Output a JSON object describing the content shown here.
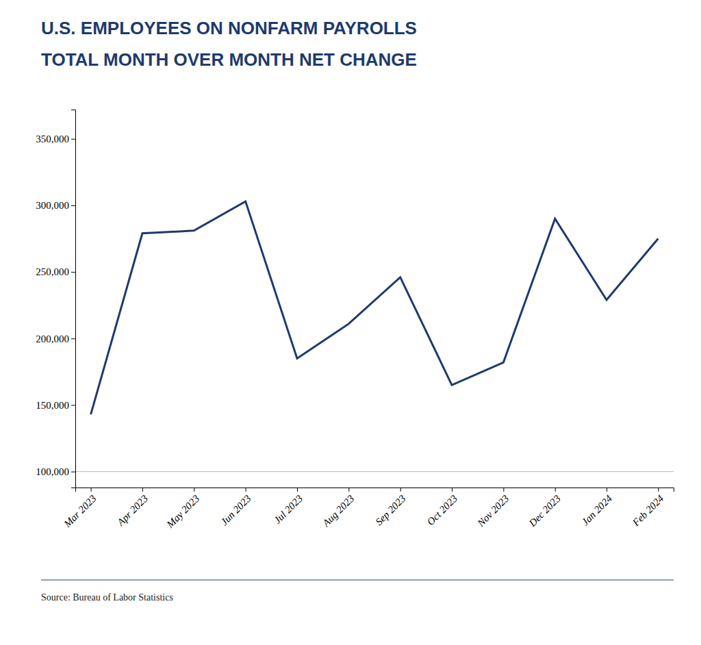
{
  "chart_data": {
    "type": "line",
    "title": "U.S. EMPLOYEES ON NONFARM PAYROLLS",
    "subtitle": "TOTAL MONTH OVER MONTH NET CHANGE",
    "source": "Source: Bureau of Labor Statistics",
    "categories": [
      "Mar 2023",
      "Apr 2023",
      "May 2023",
      "Jun 2023",
      "Jul 2023",
      "Aug 2023",
      "Sep 2023",
      "Oct 2023",
      "Nov 2023",
      "Dec 2023",
      "Jan 2024",
      "Feb 2024"
    ],
    "values": [
      143000,
      279000,
      281000,
      303000,
      185000,
      211000,
      246000,
      165000,
      182000,
      290000,
      229000,
      275000
    ],
    "color": "#1e3a6e",
    "ylim": [
      88000,
      372000
    ],
    "yticks": [
      {
        "value": 100000,
        "label": "100,000"
      },
      {
        "value": 150000,
        "label": "150,000"
      },
      {
        "value": 200000,
        "label": "200,000"
      },
      {
        "value": 250000,
        "label": "250,000"
      },
      {
        "value": 300000,
        "label": "300,000"
      },
      {
        "value": 350000,
        "label": "350,000"
      }
    ],
    "hline": {
      "y": 100000,
      "color": "#b0b8c8"
    },
    "grid": false
  }
}
